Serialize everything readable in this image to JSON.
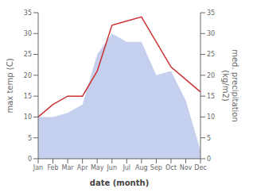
{
  "chart_data": {
    "type": "combo",
    "categories": [
      "Jan",
      "Feb",
      "Mar",
      "Apr",
      "May",
      "Jun",
      "Jul",
      "Aug",
      "Sep",
      "Oct",
      "Nov",
      "Dec"
    ],
    "xlabel": "date (month)",
    "ylabel": "max temp (C)",
    "y2label": "med. precipitation\n(kg/m2)",
    "ylim": [
      0,
      35
    ],
    "yticks": [
      0,
      5,
      10,
      15,
      20,
      25,
      30,
      35
    ],
    "y2lim": [
      0,
      35
    ],
    "y2ticks": [
      0,
      5,
      10,
      15,
      20,
      25,
      30,
      35
    ],
    "grid": false,
    "series": [
      {
        "type": "area",
        "color": "#c5d0ee",
        "values": [
          10,
          10,
          11,
          13,
          25,
          30,
          28,
          28,
          20,
          21,
          14,
          2
        ]
      },
      {
        "type": "line",
        "axis": "y2",
        "color": "#cc3333",
        "values": [
          10,
          13,
          15,
          15,
          21,
          32,
          33,
          34,
          28,
          22,
          19,
          16
        ]
      }
    ]
  }
}
